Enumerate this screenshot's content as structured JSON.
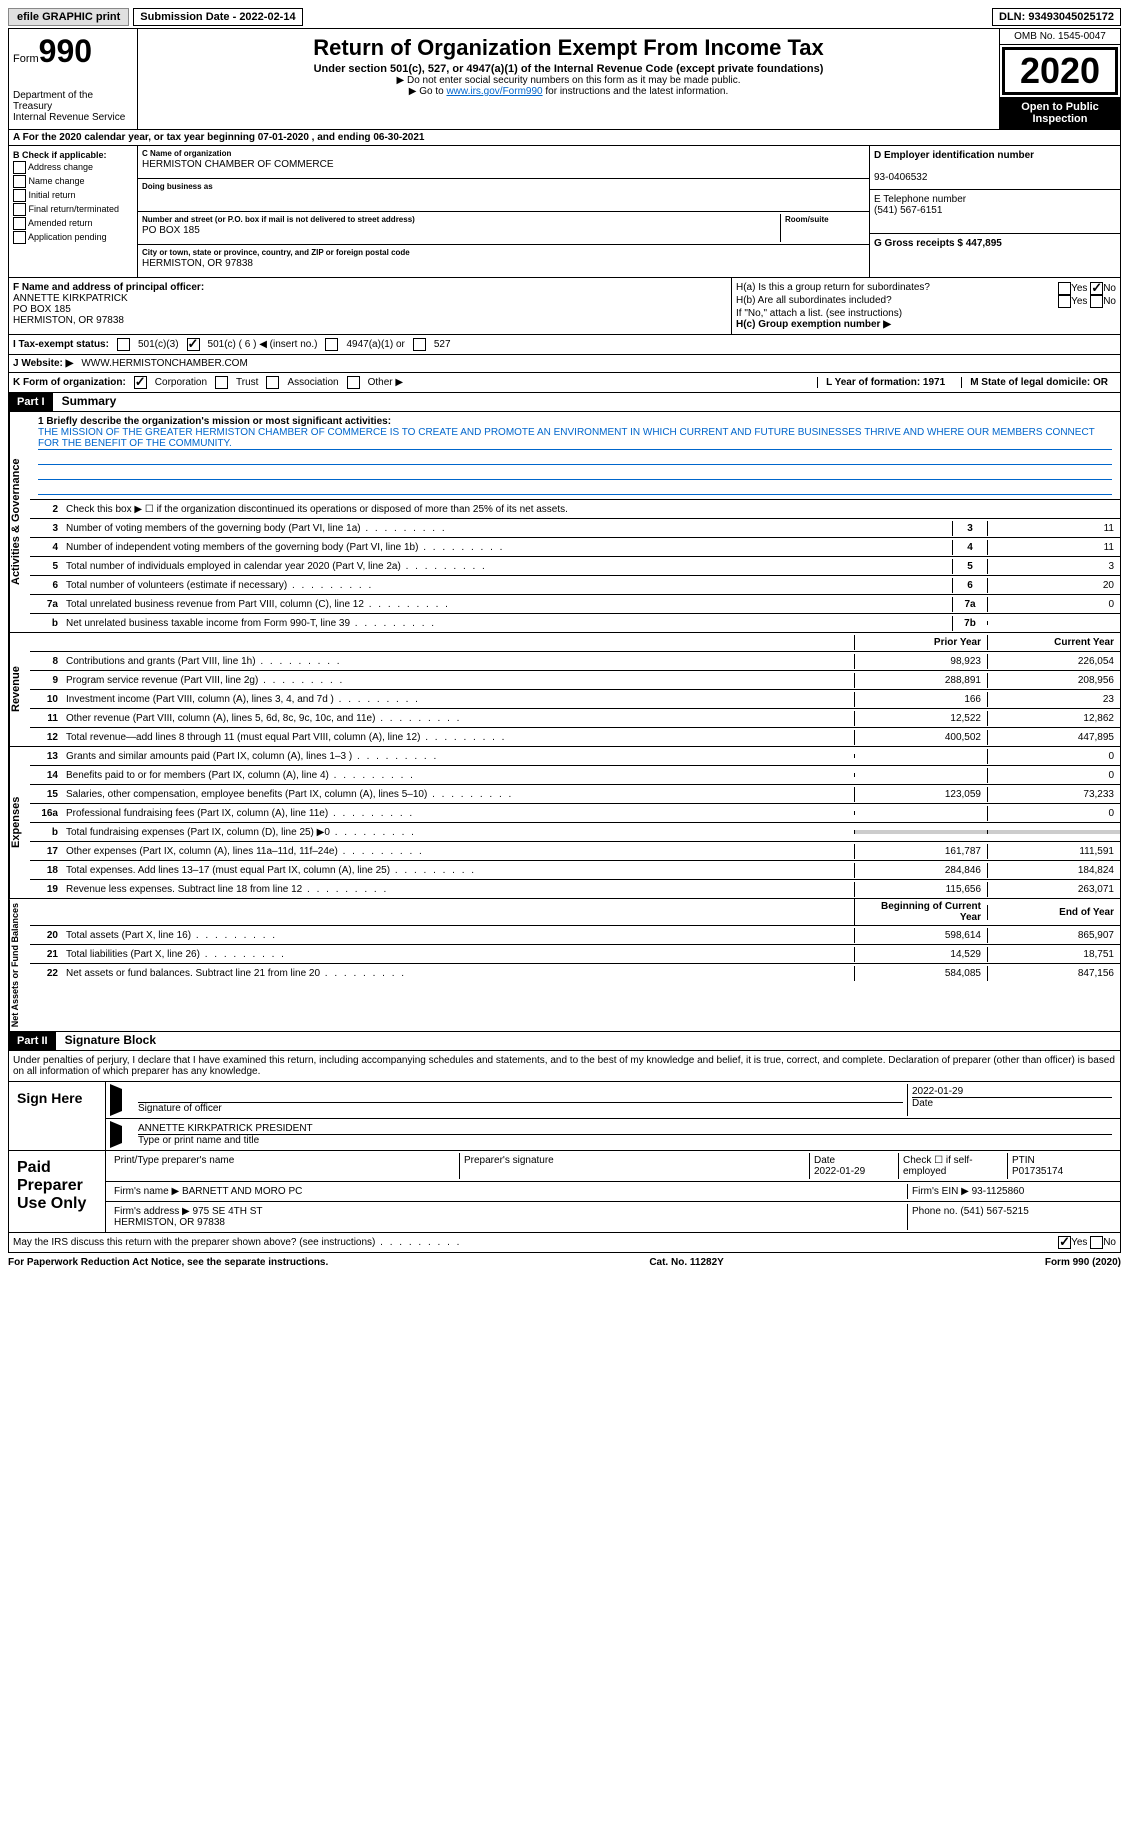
{
  "topbar": {
    "efile": "efile GRAPHIC print",
    "submission_label": "Submission Date - 2022-02-14",
    "dln_label": "DLN: 93493045025172"
  },
  "header": {
    "form_label": "Form",
    "form_number": "990",
    "dept": "Department of the Treasury\nInternal Revenue Service",
    "title": "Return of Organization Exempt From Income Tax",
    "subtitle": "Under section 501(c), 527, or 4947(a)(1) of the Internal Revenue Code (except private foundations)",
    "note1": "▶ Do not enter social security numbers on this form as it may be made public.",
    "note2_pre": "▶ Go to ",
    "note2_link": "www.irs.gov/Form990",
    "note2_post": " for instructions and the latest information.",
    "omb": "OMB No. 1545-0047",
    "year": "2020",
    "inspect": "Open to Public Inspection"
  },
  "row_a": "A For the 2020 calendar year, or tax year beginning 07-01-2020   , and ending 06-30-2021",
  "section_b": {
    "title": "B Check if applicable:",
    "opts": [
      "Address change",
      "Name change",
      "Initial return",
      "Final return/terminated",
      "Amended return",
      "Application pending"
    ]
  },
  "section_c": {
    "name_label": "C Name of organization",
    "name": "HERMISTON CHAMBER OF COMMERCE",
    "dba_label": "Doing business as",
    "dba": "",
    "addr_label": "Number and street (or P.O. box if mail is not delivered to street address)",
    "room_label": "Room/suite",
    "addr": "PO BOX 185",
    "city_label": "City or town, state or province, country, and ZIP or foreign postal code",
    "city": "HERMISTON, OR  97838"
  },
  "section_de": {
    "d_label": "D Employer identification number",
    "d_val": "93-0406532",
    "e_label": "E Telephone number",
    "e_val": "(541) 567-6151",
    "g_label": "G Gross receipts $ 447,895"
  },
  "section_f": {
    "label": "F Name and address of principal officer:",
    "name": "ANNETTE KIRKPATRICK",
    "addr1": "PO BOX 185",
    "addr2": "HERMISTON, OR  97838"
  },
  "section_h": {
    "ha": "H(a)  Is this a group return for subordinates?",
    "hb": "H(b)  Are all subordinates included?",
    "hb_note": "If \"No,\" attach a list. (see instructions)",
    "hc": "H(c)  Group exemption number ▶",
    "yes": "Yes",
    "no": "No"
  },
  "row_i": {
    "label": "I   Tax-exempt status:",
    "opt1": "501(c)(3)",
    "opt2": "501(c) ( 6 ) ◀ (insert no.)",
    "opt3": "4947(a)(1) or",
    "opt4": "527"
  },
  "row_j": {
    "label": "J   Website: ▶",
    "val": "WWW.HERMISTONCHAMBER.COM"
  },
  "row_k": {
    "label": "K Form of organization:",
    "corp": "Corporation",
    "trust": "Trust",
    "assoc": "Association",
    "other": "Other ▶"
  },
  "row_lm": {
    "l": "L Year of formation: 1971",
    "m": "M State of legal domicile: OR"
  },
  "part1": {
    "header": "Part I",
    "title": "Summary",
    "line1_label": "1  Briefly describe the organization's mission or most significant activities:",
    "mission": "THE MISSION OF THE GREATER HERMISTON CHAMBER OF COMMERCE IS TO CREATE AND PROMOTE AN ENVIRONMENT IN WHICH CURRENT AND FUTURE BUSINESSES THRIVE AND WHERE OUR MEMBERS CONNECT FOR THE BENEFIT OF THE COMMUNITY.",
    "line2": "Check this box ▶ ☐ if the organization discontinued its operations or disposed of more than 25% of its net assets.",
    "vlabel_gov": "Activities & Governance",
    "vlabel_rev": "Revenue",
    "vlabel_exp": "Expenses",
    "vlabel_net": "Net Assets or Fund Balances",
    "col_prior": "Prior Year",
    "col_current": "Current Year",
    "col_begin": "Beginning of Current Year",
    "col_end": "End of Year",
    "lines_gov": [
      {
        "n": "3",
        "d": "Number of voting members of the governing body (Part VI, line 1a)",
        "box": "3",
        "v": "11"
      },
      {
        "n": "4",
        "d": "Number of independent voting members of the governing body (Part VI, line 1b)",
        "box": "4",
        "v": "11"
      },
      {
        "n": "5",
        "d": "Total number of individuals employed in calendar year 2020 (Part V, line 2a)",
        "box": "5",
        "v": "3"
      },
      {
        "n": "6",
        "d": "Total number of volunteers (estimate if necessary)",
        "box": "6",
        "v": "20"
      },
      {
        "n": "7a",
        "d": "Total unrelated business revenue from Part VIII, column (C), line 12",
        "box": "7a",
        "v": "0"
      },
      {
        "n": "b",
        "d": "Net unrelated business taxable income from Form 990-T, line 39",
        "box": "7b",
        "v": ""
      }
    ],
    "lines_rev": [
      {
        "n": "8",
        "d": "Contributions and grants (Part VIII, line 1h)",
        "p": "98,923",
        "c": "226,054"
      },
      {
        "n": "9",
        "d": "Program service revenue (Part VIII, line 2g)",
        "p": "288,891",
        "c": "208,956"
      },
      {
        "n": "10",
        "d": "Investment income (Part VIII, column (A), lines 3, 4, and 7d )",
        "p": "166",
        "c": "23"
      },
      {
        "n": "11",
        "d": "Other revenue (Part VIII, column (A), lines 5, 6d, 8c, 9c, 10c, and 11e)",
        "p": "12,522",
        "c": "12,862"
      },
      {
        "n": "12",
        "d": "Total revenue—add lines 8 through 11 (must equal Part VIII, column (A), line 12)",
        "p": "400,502",
        "c": "447,895"
      }
    ],
    "lines_exp": [
      {
        "n": "13",
        "d": "Grants and similar amounts paid (Part IX, column (A), lines 1–3 )",
        "p": "",
        "c": "0"
      },
      {
        "n": "14",
        "d": "Benefits paid to or for members (Part IX, column (A), line 4)",
        "p": "",
        "c": "0"
      },
      {
        "n": "15",
        "d": "Salaries, other compensation, employee benefits (Part IX, column (A), lines 5–10)",
        "p": "123,059",
        "c": "73,233"
      },
      {
        "n": "16a",
        "d": "Professional fundraising fees (Part IX, column (A), line 11e)",
        "p": "",
        "c": "0"
      },
      {
        "n": "b",
        "d": "Total fundraising expenses (Part IX, column (D), line 25) ▶0",
        "p": "SHADE",
        "c": "SHADE"
      },
      {
        "n": "17",
        "d": "Other expenses (Part IX, column (A), lines 11a–11d, 11f–24e)",
        "p": "161,787",
        "c": "111,591"
      },
      {
        "n": "18",
        "d": "Total expenses. Add lines 13–17 (must equal Part IX, column (A), line 25)",
        "p": "284,846",
        "c": "184,824"
      },
      {
        "n": "19",
        "d": "Revenue less expenses. Subtract line 18 from line 12",
        "p": "115,656",
        "c": "263,071"
      }
    ],
    "lines_net": [
      {
        "n": "20",
        "d": "Total assets (Part X, line 16)",
        "p": "598,614",
        "c": "865,907"
      },
      {
        "n": "21",
        "d": "Total liabilities (Part X, line 26)",
        "p": "14,529",
        "c": "18,751"
      },
      {
        "n": "22",
        "d": "Net assets or fund balances. Subtract line 21 from line 20",
        "p": "584,085",
        "c": "847,156"
      }
    ]
  },
  "part2": {
    "header": "Part II",
    "title": "Signature Block",
    "penalty": "Under penalties of perjury, I declare that I have examined this return, including accompanying schedules and statements, and to the best of my knowledge and belief, it is true, correct, and complete. Declaration of preparer (other than officer) is based on all information of which preparer has any knowledge.",
    "sign_here": "Sign Here",
    "sig_officer": "Signature of officer",
    "sig_date": "2022-01-29",
    "date_label": "Date",
    "officer_name": "ANNETTE KIRKPATRICK  PRESIDENT",
    "officer_label": "Type or print name and title",
    "paid_label": "Paid Preparer Use Only",
    "prep_name_label": "Print/Type preparer's name",
    "prep_sig_label": "Preparer's signature",
    "prep_date_label": "Date",
    "prep_date": "2022-01-29",
    "prep_check": "Check ☐ if self-employed",
    "ptin_label": "PTIN",
    "ptin": "P01735174",
    "firm_name_label": "Firm's name    ▶",
    "firm_name": "BARNETT AND MORO PC",
    "firm_ein_label": "Firm's EIN ▶",
    "firm_ein": "93-1125860",
    "firm_addr_label": "Firm's address ▶",
    "firm_addr": "975 SE 4TH ST\nHERMISTON, OR  97838",
    "firm_phone_label": "Phone no.",
    "firm_phone": "(541) 567-5215",
    "discuss": "May the IRS discuss this return with the preparer shown above? (see instructions)",
    "yes": "Yes",
    "no": "No"
  },
  "footer": {
    "left": "For Paperwork Reduction Act Notice, see the separate instructions.",
    "center": "Cat. No. 11282Y",
    "right": "Form 990 (2020)"
  }
}
